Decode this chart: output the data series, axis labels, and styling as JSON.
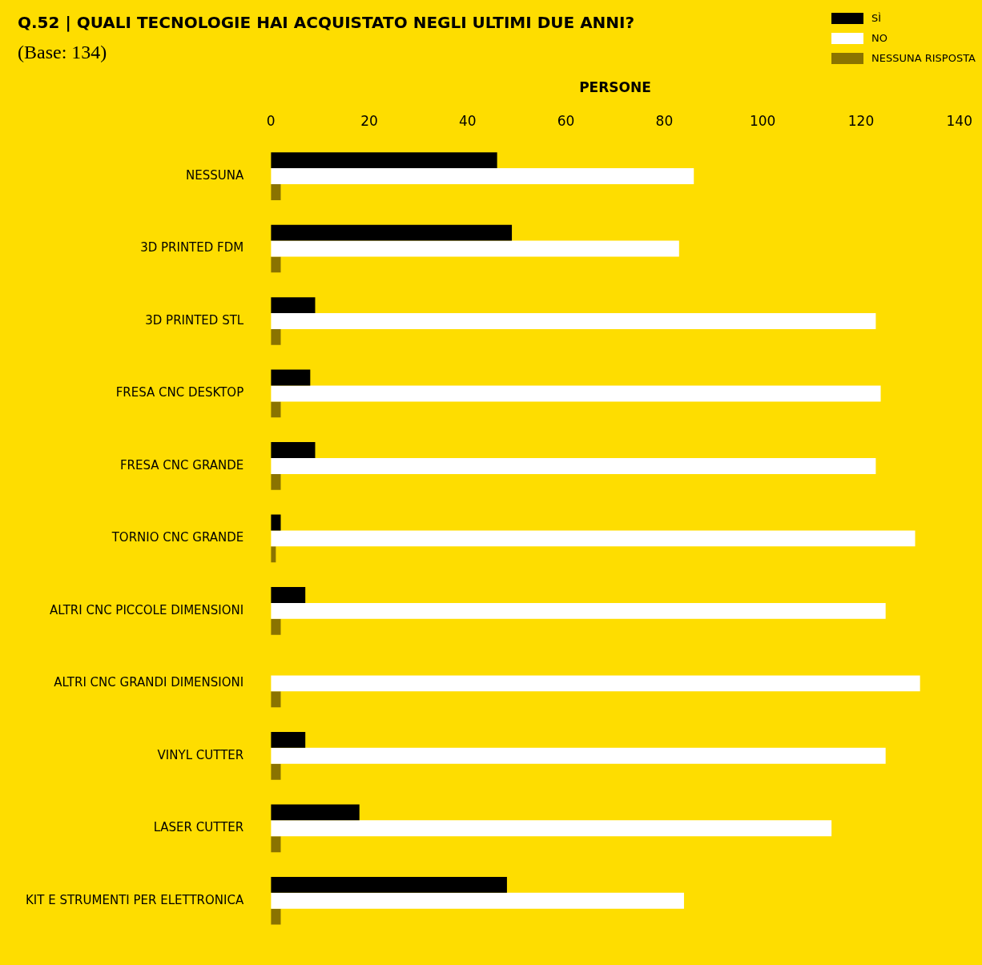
{
  "chart_data": {
    "type": "bar",
    "orientation": "horizontal",
    "title": "Q.52 | QUALI TECNOLOGIE HAI ACQUISTATO NEGLI ULTIMI DUE ANNI?",
    "subtitle": "(Base: 134)",
    "xlabel": "PERSONE",
    "categories": [
      "NESSUNA",
      "3D PRINTED FDM",
      "3D PRINTED STL",
      "FRESA CNC DESKTOP",
      "FRESA CNC GRANDE",
      "TORNIO CNC GRANDE",
      "ALTRI CNC PICCOLE DIMENSIONI",
      "ALTRI CNC GRANDI DIMENSIONI",
      "VINYL CUTTER",
      "LASER CUTTER",
      "KIT E STRUMENTI PER ELETTRONICA"
    ],
    "series": [
      {
        "name": "SÌ",
        "color": "#000000",
        "values": [
          46,
          49,
          9,
          8,
          9,
          2,
          7,
          0,
          7,
          18,
          48
        ]
      },
      {
        "name": "NO",
        "color": "#ffffff",
        "values": [
          86,
          83,
          123,
          124,
          123,
          131,
          125,
          132,
          125,
          114,
          84
        ]
      },
      {
        "name": "NESSUNA RISPOSTA",
        "color": "#8a7300",
        "values": [
          2,
          2,
          2,
          2,
          2,
          1,
          2,
          2,
          2,
          2,
          2
        ]
      }
    ],
    "xlim": [
      0,
      140
    ],
    "xticks": [
      0,
      20,
      40,
      60,
      80,
      100,
      120,
      140
    ],
    "grid": false,
    "legend": "top right"
  }
}
